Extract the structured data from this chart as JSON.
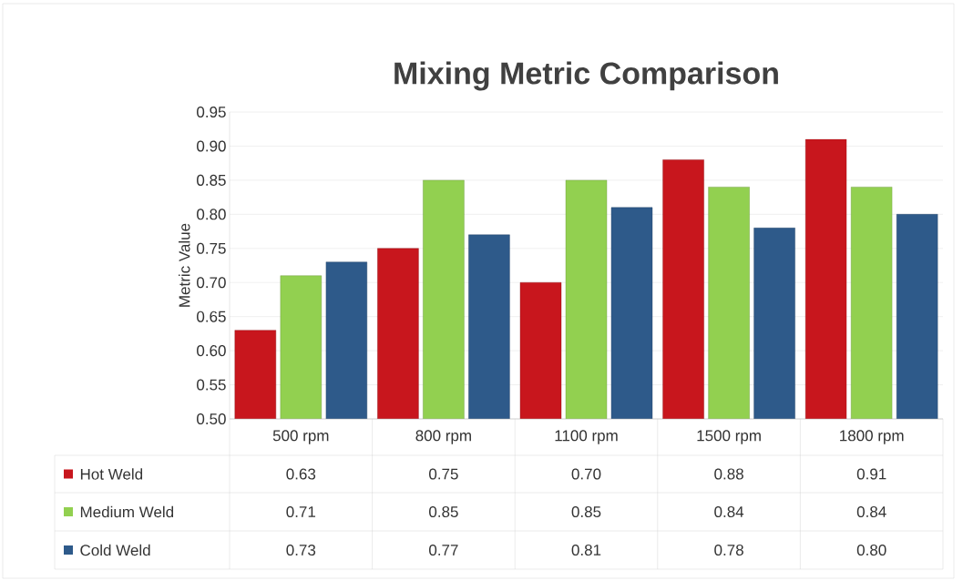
{
  "chart_data": {
    "type": "bar",
    "title": "Mixing Metric Comparison",
    "ylabel": "Metric Value",
    "categories": [
      "500 rpm",
      "800 rpm",
      "1100 rpm",
      "1500 rpm",
      "1800 rpm"
    ],
    "series": [
      {
        "name": "Hot Weld",
        "color": "#c8161d",
        "values": [
          0.63,
          0.75,
          0.7,
          0.88,
          0.91
        ],
        "value_labels": [
          "0.63",
          "0.75",
          "0.70",
          "0.88",
          "0.91"
        ]
      },
      {
        "name": "Medium Weld",
        "color": "#92d050",
        "values": [
          0.71,
          0.85,
          0.85,
          0.84,
          0.84
        ],
        "value_labels": [
          "0.71",
          "0.85",
          "0.85",
          "0.84",
          "0.84"
        ]
      },
      {
        "name": "Cold Weld",
        "color": "#2e5a8a",
        "values": [
          0.73,
          0.77,
          0.81,
          0.78,
          0.8
        ],
        "value_labels": [
          "0.73",
          "0.77",
          "0.81",
          "0.78",
          "0.80"
        ]
      }
    ],
    "ylim": [
      0.5,
      0.95
    ],
    "yticks": [
      {
        "value": 0.5,
        "label": "0.50"
      },
      0.55,
      {
        "value": 0.6,
        "label": "0.60"
      },
      0.65,
      {
        "value": 0.7,
        "label": "0.70"
      },
      0.75,
      {
        "value": 0.8,
        "label": "0.80"
      },
      0.85,
      {
        "value": 0.9,
        "label": "0.90"
      },
      0.95
    ],
    "grid": "y",
    "legend": "bottom"
  }
}
